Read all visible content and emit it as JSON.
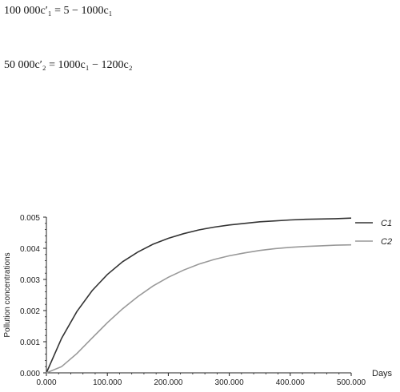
{
  "equations": [
    "100 000c′₁ = 5 − 1000c₁",
    "50 000c′₂ = 1000c₁ − 1200c₂"
  ],
  "chart_data": {
    "type": "line",
    "title": "",
    "xlabel": "Days",
    "ylabel": "Pollution concentrations",
    "xlim": [
      0,
      500
    ],
    "ylim": [
      0,
      0.005
    ],
    "x_ticks": [
      "0.000",
      "100.000",
      "200.000",
      "300.000",
      "400.000",
      "500.000"
    ],
    "y_ticks": [
      "0.000",
      "0.001",
      "0.002",
      "0.003",
      "0.004",
      "0.005"
    ],
    "grid": false,
    "legend_position": "right",
    "colors": {
      "C1": "#333333",
      "C2": "#999999"
    },
    "x": [
      0,
      25,
      50,
      75,
      100,
      125,
      150,
      175,
      200,
      225,
      250,
      275,
      300,
      325,
      350,
      375,
      400,
      425,
      450,
      475,
      500
    ],
    "series": [
      {
        "name": "C1",
        "values": [
          0,
          0.00111,
          0.00197,
          0.00264,
          0.00316,
          0.00357,
          0.00388,
          0.00413,
          0.00432,
          0.00447,
          0.00459,
          0.00468,
          0.00475,
          0.0048,
          0.00485,
          0.00488,
          0.00491,
          0.00493,
          0.00494,
          0.00495,
          0.00497
        ]
      },
      {
        "name": "C2",
        "values": [
          0,
          0.0002,
          0.00062,
          0.00112,
          0.00161,
          0.00206,
          0.00245,
          0.00279,
          0.00307,
          0.0033,
          0.00349,
          0.00364,
          0.00376,
          0.00385,
          0.00393,
          0.00399,
          0.00403,
          0.00406,
          0.00408,
          0.0041,
          0.00411
        ]
      }
    ]
  }
}
